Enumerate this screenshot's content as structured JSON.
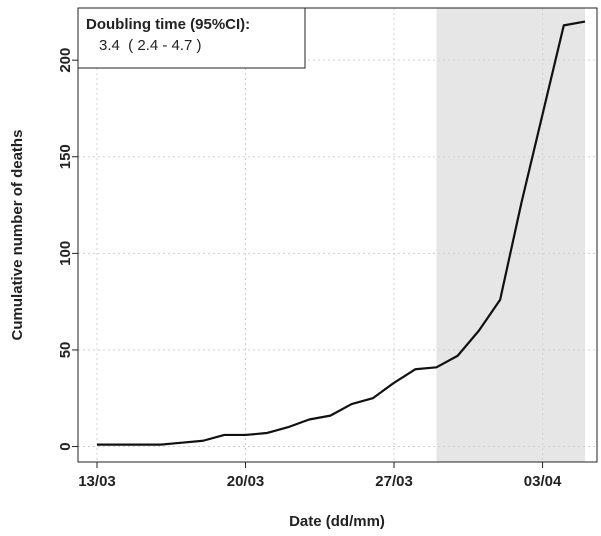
{
  "chart_data": {
    "type": "line",
    "x_label": "Date (dd/mm)",
    "y_label": "Cumulative number of deaths",
    "annotation": {
      "title": "Doubling time (95%CI):",
      "text": "3.4  ( 2.4 - 4.7 )"
    },
    "x": [
      "13/03",
      "14/03",
      "15/03",
      "16/03",
      "17/03",
      "18/03",
      "19/03",
      "20/03",
      "21/03",
      "22/03",
      "23/03",
      "24/03",
      "25/03",
      "26/03",
      "27/03",
      "28/03",
      "29/03",
      "30/03",
      "31/03",
      "01/04",
      "02/04",
      "03/04",
      "04/04",
      "05/04"
    ],
    "series": [
      {
        "name": "Cumulative deaths",
        "color": "#111111",
        "values": [
          1,
          1,
          1,
          1,
          2,
          3,
          6,
          6,
          7,
          10,
          14,
          16,
          22,
          25,
          33,
          40,
          41,
          47,
          60,
          76,
          126,
          172,
          218,
          220
        ]
      }
    ],
    "highlight": {
      "from": "29/03",
      "to": "05/04",
      "color": "#e6e6e6"
    },
    "ylim": [
      -8,
      227
    ],
    "yticks": [
      0,
      50,
      100,
      150,
      200
    ],
    "xticks": [
      "13/03",
      "20/03",
      "27/03",
      "03/04"
    ],
    "grid": true
  }
}
